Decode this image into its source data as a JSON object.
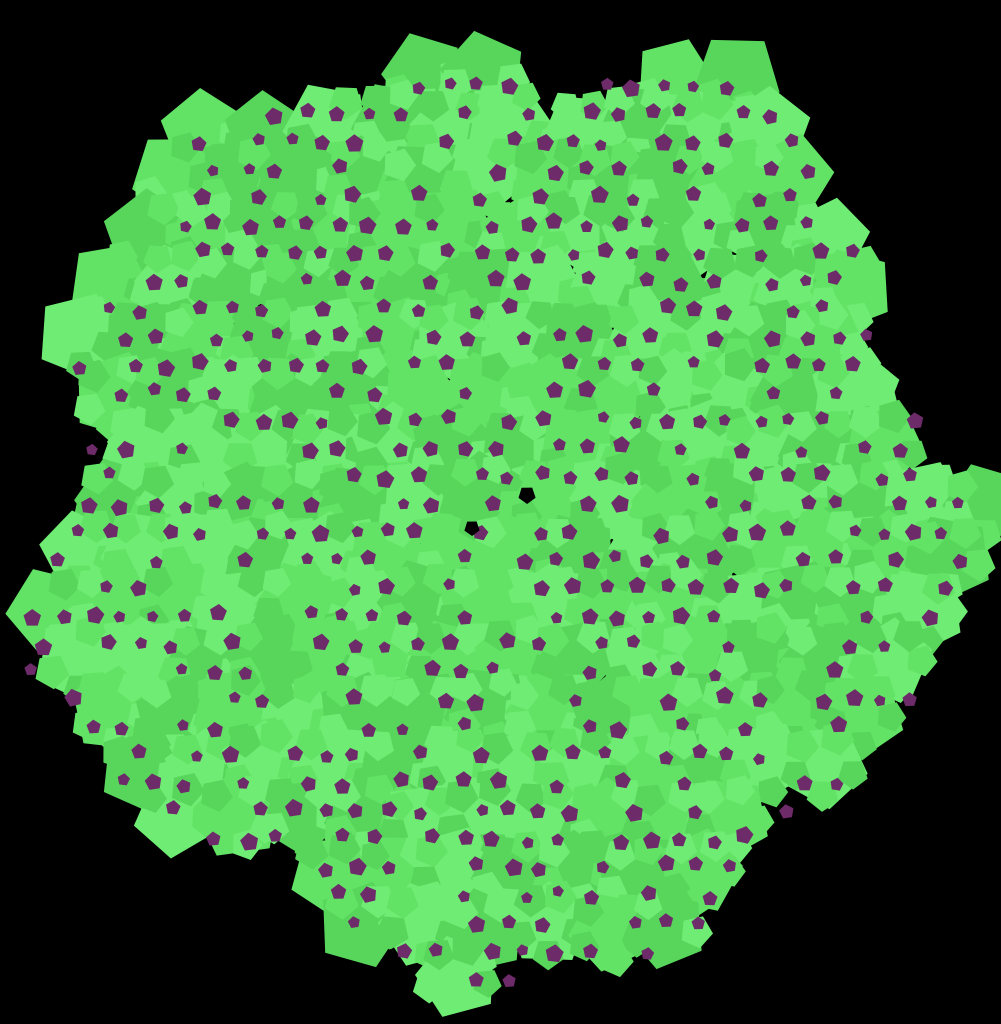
{
  "image": {
    "subject": "pentagonal-fractal-tiling",
    "colors": {
      "background": "#000000",
      "tile_fill": "#63e366",
      "tile_fill_light": "#6fec73",
      "tile_fill_dark": "#57d65b",
      "pentagon_fill": "#6e2b6a"
    }
  }
}
